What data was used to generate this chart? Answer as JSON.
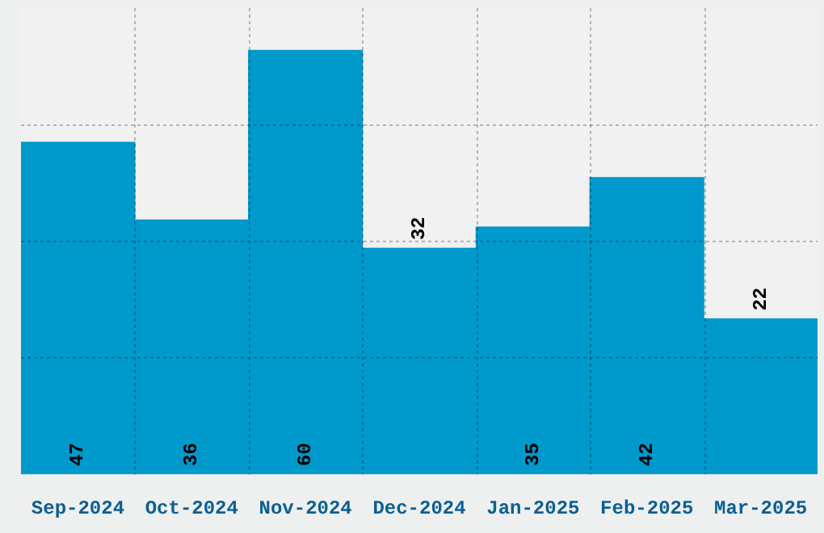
{
  "chart_data": {
    "type": "bar",
    "categories": [
      "Sep-2024",
      "Oct-2024",
      "Nov-2024",
      "Dec-2024",
      "Jan-2025",
      "Feb-2025",
      "Mar-2025"
    ],
    "values": [
      47,
      36,
      60,
      32,
      35,
      42,
      22
    ],
    "color": "#0099cc",
    "ylim": [
      0,
      66
    ],
    "grid": true,
    "tick_labels": "x",
    "data_labels": true
  }
}
